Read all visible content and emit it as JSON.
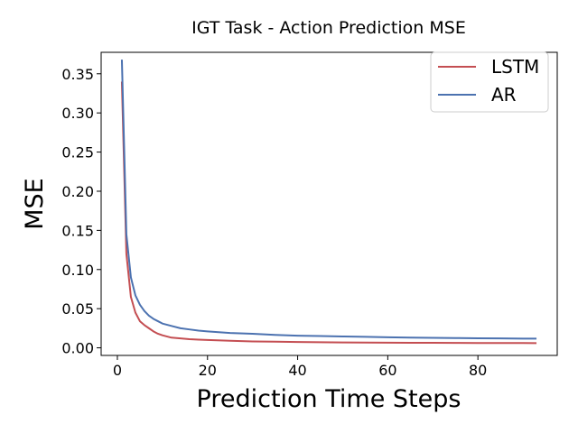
{
  "chart_data": {
    "type": "line",
    "title": "IGT Task - Action Prediction MSE",
    "xlabel": "Prediction Time Steps",
    "ylabel": "MSE",
    "xlim": [
      -3.6,
      97.6
    ],
    "ylim": [
      -0.0097,
      0.3774
    ],
    "xticks": [
      0,
      20,
      40,
      60,
      80
    ],
    "yticks": [
      0.0,
      0.05,
      0.1,
      0.15,
      0.2,
      0.25,
      0.3,
      0.35
    ],
    "xtick_labels": [
      "0",
      "20",
      "40",
      "60",
      "80"
    ],
    "ytick_labels": [
      "0.00",
      "0.05",
      "0.10",
      "0.15",
      "0.20",
      "0.25",
      "0.30",
      "0.35"
    ],
    "grid": false,
    "legend_position": "top-right",
    "x": [
      1,
      2,
      3,
      4,
      5,
      6,
      7,
      8,
      9,
      10,
      12,
      14,
      16,
      18,
      20,
      25,
      30,
      35,
      40,
      45,
      50,
      55,
      60,
      65,
      70,
      75,
      80,
      85,
      90,
      93
    ],
    "series": [
      {
        "name": "LSTM",
        "color": "#c44e52",
        "values": [
          0.34,
          0.12,
          0.065,
          0.045,
          0.034,
          0.029,
          0.025,
          0.021,
          0.018,
          0.016,
          0.013,
          0.012,
          0.011,
          0.0105,
          0.01,
          0.009,
          0.0082,
          0.0078,
          0.0074,
          0.0071,
          0.0069,
          0.0067,
          0.0066,
          0.0065,
          0.0064,
          0.0063,
          0.0062,
          0.0061,
          0.0061,
          0.006
        ]
      },
      {
        "name": "AR",
        "color": "#4c72b0",
        "values": [
          0.368,
          0.145,
          0.09,
          0.067,
          0.055,
          0.047,
          0.041,
          0.037,
          0.034,
          0.031,
          0.028,
          0.025,
          0.0235,
          0.022,
          0.021,
          0.019,
          0.018,
          0.0165,
          0.0155,
          0.015,
          0.0145,
          0.014,
          0.0135,
          0.013,
          0.0128,
          0.0125,
          0.0122,
          0.012,
          0.0118,
          0.0117
        ]
      }
    ]
  }
}
